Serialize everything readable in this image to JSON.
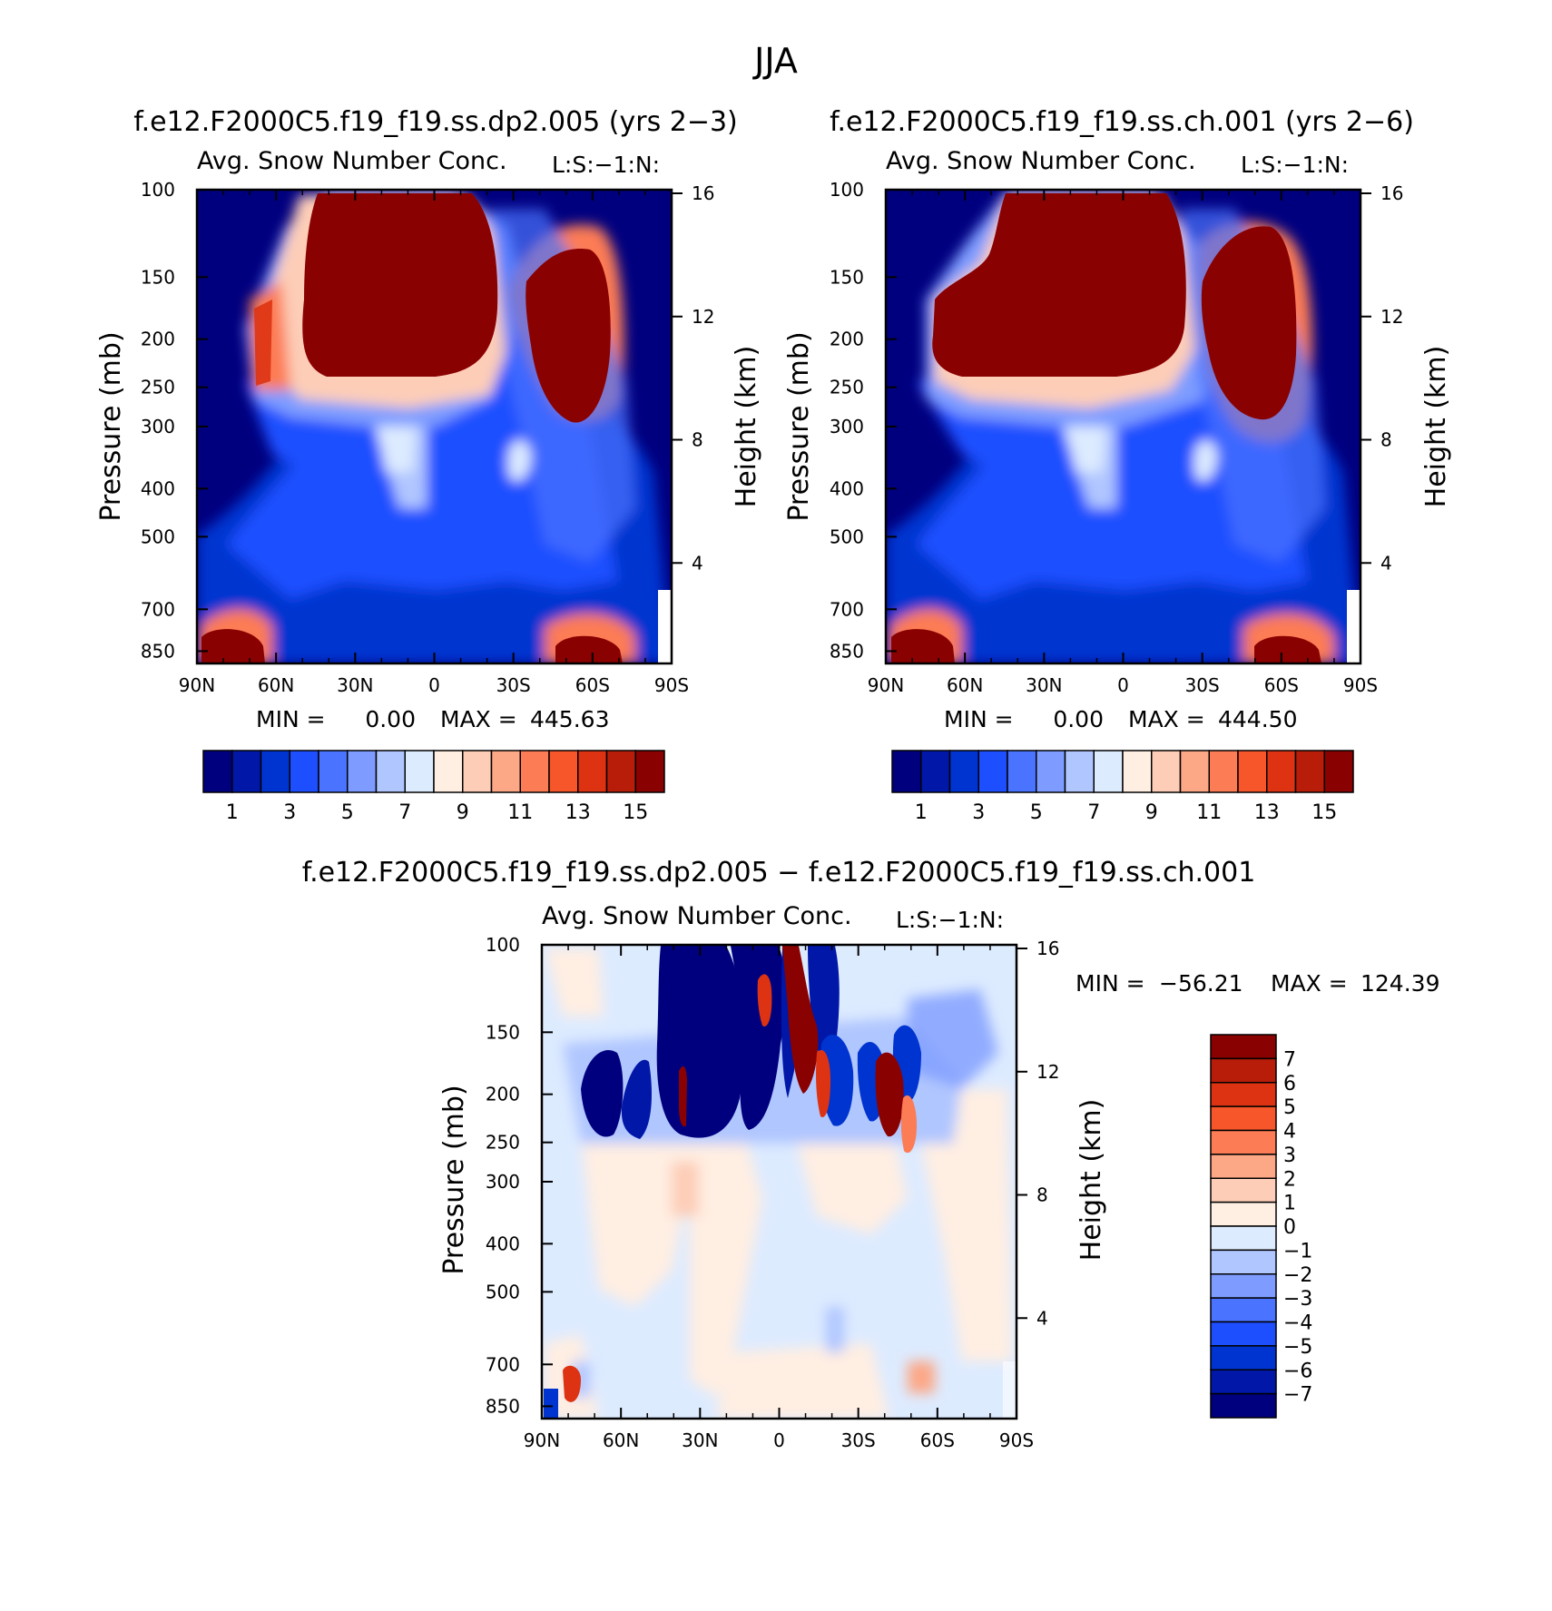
{
  "figure_title": "JJA",
  "chart_data": [
    {
      "type": "heatmap",
      "title": "f.e12.F2000C5.f19_f19.ss.dp2.005 (yrs 2−3)",
      "subtitle": "Avg. Snow Number Conc.",
      "units": "L:S:−1:N:",
      "xlabel": "",
      "ylabel": "Pressure (mb)",
      "ylabel_right": "Height (km)",
      "x_ticks": [
        "90N",
        "60N",
        "30N",
        "0",
        "30S",
        "60S",
        "90S"
      ],
      "x_range": [
        90,
        -90
      ],
      "y_ticks": [
        100,
        150,
        200,
        250,
        300,
        400,
        500,
        700,
        850
      ],
      "y_range": [
        100,
        900
      ],
      "y_right_ticks": [
        16,
        12,
        8,
        4
      ],
      "min_label": "MIN =",
      "min_value": "0.00",
      "max_label": "MAX =",
      "max_value": "445.63",
      "colorbar_labels": [
        "1",
        "3",
        "5",
        "7",
        "9",
        "11",
        "13",
        "15"
      ],
      "colorbar_colors": [
        "#00007F",
        "#0017A8",
        "#0034D0",
        "#1E4FFF",
        "#4A74FF",
        "#7E9CFF",
        "#B0C6FF",
        "#DDEBFF",
        "#FFEEE2",
        "#FDCDB7",
        "#FCA786",
        "#FC7C55",
        "#F65629",
        "#DD3312",
        "#B81D09",
        "#8A0101"
      ],
      "features": [
        {
          "lat": 20,
          "p": 190,
          "value": 17,
          "extent": "upper troposphere block"
        },
        {
          "lat": -62,
          "p": 215,
          "value": 17,
          "extent": "southern high cloud"
        },
        {
          "lat": 75,
          "p": 850,
          "value": 16,
          "extent": "northern low cloud"
        },
        {
          "lat": -62,
          "p": 850,
          "value": 16,
          "extent": "southern low cloud"
        }
      ]
    },
    {
      "type": "heatmap",
      "title": "f.e12.F2000C5.f19_f19.ss.ch.001 (yrs 2−6)",
      "subtitle": "Avg. Snow Number Conc.",
      "units": "L:S:−1:N:",
      "xlabel": "",
      "ylabel": "Pressure (mb)",
      "ylabel_right": "Height (km)",
      "x_ticks": [
        "90N",
        "60N",
        "30N",
        "0",
        "30S",
        "60S",
        "90S"
      ],
      "x_range": [
        90,
        -90
      ],
      "y_ticks": [
        100,
        150,
        200,
        250,
        300,
        400,
        500,
        700,
        850
      ],
      "y_range": [
        100,
        900
      ],
      "y_right_ticks": [
        16,
        12,
        8,
        4
      ],
      "min_label": "MIN =",
      "min_value": "0.00",
      "max_label": "MAX =",
      "max_value": "444.50",
      "colorbar_labels": [
        "1",
        "3",
        "5",
        "7",
        "9",
        "11",
        "13",
        "15"
      ],
      "colorbar_colors": [
        "#00007F",
        "#0017A8",
        "#0034D0",
        "#1E4FFF",
        "#4A74FF",
        "#7E9CFF",
        "#B0C6FF",
        "#DDEBFF",
        "#FFEEE2",
        "#FDCDB7",
        "#FCA786",
        "#FC7C55",
        "#F65629",
        "#DD3312",
        "#B81D09",
        "#8A0101"
      ]
    },
    {
      "type": "heatmap",
      "title": "f.e12.F2000C5.f19_f19.ss.dp2.005 − f.e12.F2000C5.f19_f19.ss.ch.001",
      "subtitle": "Avg. Snow Number Conc.",
      "units": "L:S:−1:N:",
      "xlabel": "",
      "ylabel": "Pressure (mb)",
      "ylabel_right": "Height (km)",
      "x_ticks": [
        "90N",
        "60N",
        "30N",
        "0",
        "30S",
        "60S",
        "90S"
      ],
      "x_range": [
        90,
        -90
      ],
      "y_ticks": [
        100,
        150,
        200,
        250,
        300,
        400,
        500,
        700,
        850
      ],
      "y_range": [
        100,
        900
      ],
      "y_right_ticks": [
        16,
        12,
        8,
        4
      ],
      "min_label": "MIN =",
      "min_value": "−56.21",
      "max_label": "MAX =",
      "max_value": "124.39",
      "colorbar_labels": [
        "7",
        "6",
        "5",
        "4",
        "3",
        "2",
        "1",
        "0",
        "−1",
        "−2",
        "−3",
        "−4",
        "−5",
        "−6",
        "−7"
      ],
      "colorbar_colors": [
        "#8A0101",
        "#B81D09",
        "#DD3312",
        "#F65629",
        "#FC7C55",
        "#FCA786",
        "#FDCDB7",
        "#FFEEE2",
        "#DDEBFF",
        "#B0C6FF",
        "#7E9CFF",
        "#4A74FF",
        "#1E4FFF",
        "#0034D0",
        "#0017A8",
        "#00007F"
      ]
    }
  ]
}
